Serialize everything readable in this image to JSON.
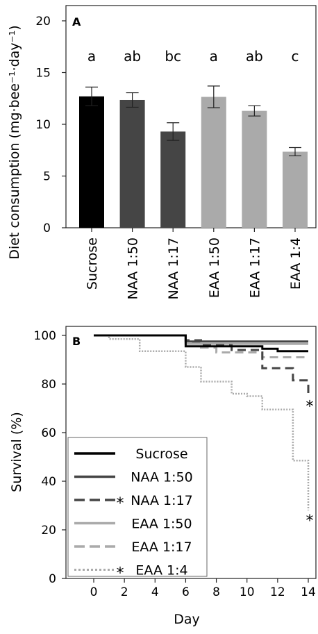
{
  "chart_data": [
    {
      "panel": "A",
      "type": "bar",
      "ylabel": "Diet consumption (mg·bee⁻¹·day⁻¹)",
      "ylim": [
        0,
        20
      ],
      "yticks": [
        0,
        5,
        10,
        15,
        20
      ],
      "categories": [
        "Sucrose",
        "NAA 1:50",
        "NAA 1:17",
        "EAA 1:50",
        "EAA 1:17",
        "EAA 1:4"
      ],
      "values": [
        12.7,
        12.35,
        9.3,
        12.65,
        11.3,
        7.35
      ],
      "errors": [
        0.9,
        0.7,
        0.85,
        1.05,
        0.5,
        0.4
      ],
      "colors": [
        "#000000",
        "#454545",
        "#454545",
        "#aaaaaa",
        "#aaaaaa",
        "#aaaaaa"
      ],
      "significance": [
        "a",
        "ab",
        "bc",
        "a",
        "ab",
        "c"
      ]
    },
    {
      "panel": "B",
      "type": "line",
      "xlabel": "Day",
      "ylabel": "Survival (%)",
      "xlim": [
        -2,
        14.5
      ],
      "ylim": [
        0,
        100
      ],
      "xticks": [
        0,
        2,
        4,
        6,
        8,
        10,
        12,
        14
      ],
      "yticks": [
        0,
        20,
        40,
        60,
        80,
        100
      ],
      "series": [
        {
          "name": "Sucrose",
          "color": "#000000",
          "style": "solid",
          "star": "",
          "points": [
            [
              0,
              100
            ],
            [
              6,
              100
            ],
            [
              6,
              95.5
            ],
            [
              11,
              95.5
            ],
            [
              11,
              94.5
            ],
            [
              12,
              94.5
            ],
            [
              12,
              93.5
            ],
            [
              14,
              93.5
            ]
          ]
        },
        {
          "name": "NAA 1:50",
          "color": "#454545",
          "style": "solid",
          "star": "",
          "points": [
            [
              0,
              100
            ],
            [
              6,
              100
            ],
            [
              6,
              97.5
            ],
            [
              14,
              97.5
            ]
          ]
        },
        {
          "name": "NAA 1:17",
          "color": "#454545",
          "style": "dashed",
          "star": "*",
          "points": [
            [
              0,
              100
            ],
            [
              6,
              100
            ],
            [
              6,
              98
            ],
            [
              7,
              98
            ],
            [
              7,
              96
            ],
            [
              9,
              96
            ],
            [
              9,
              94
            ],
            [
              11,
              94
            ],
            [
              11,
              86.5
            ],
            [
              13,
              86.5
            ],
            [
              13,
              81.5
            ],
            [
              14,
              81.5
            ],
            [
              14,
              75
            ]
          ]
        },
        {
          "name": "EAA 1:50",
          "color": "#aaaaaa",
          "style": "solid",
          "star": "",
          "points": [
            [
              0,
              100
            ],
            [
              6,
              100
            ],
            [
              6,
              96.5
            ],
            [
              14,
              96.5
            ]
          ]
        },
        {
          "name": "EAA 1:17",
          "color": "#aaaaaa",
          "style": "dashed",
          "star": "",
          "points": [
            [
              0,
              100
            ],
            [
              6,
              100
            ],
            [
              6,
              97
            ],
            [
              7,
              97
            ],
            [
              7,
              95
            ],
            [
              8,
              95
            ],
            [
              8,
              93
            ],
            [
              11,
              93
            ],
            [
              11,
              91
            ],
            [
              14,
              91
            ]
          ]
        },
        {
          "name": "EAA 1:4",
          "color": "#aaaaaa",
          "style": "dotted",
          "star": "*",
          "points": [
            [
              0,
              100
            ],
            [
              1,
              100
            ],
            [
              1,
              98.5
            ],
            [
              3,
              98.5
            ],
            [
              3,
              93.5
            ],
            [
              6,
              93.5
            ],
            [
              6,
              87
            ],
            [
              7,
              87
            ],
            [
              7,
              81
            ],
            [
              9,
              81
            ],
            [
              9,
              76
            ],
            [
              10,
              76
            ],
            [
              10,
              75
            ],
            [
              11,
              75
            ],
            [
              11,
              69.5
            ],
            [
              13,
              69.5
            ],
            [
              13,
              48.5
            ],
            [
              14,
              48.5
            ],
            [
              14,
              28
            ]
          ]
        }
      ]
    }
  ]
}
